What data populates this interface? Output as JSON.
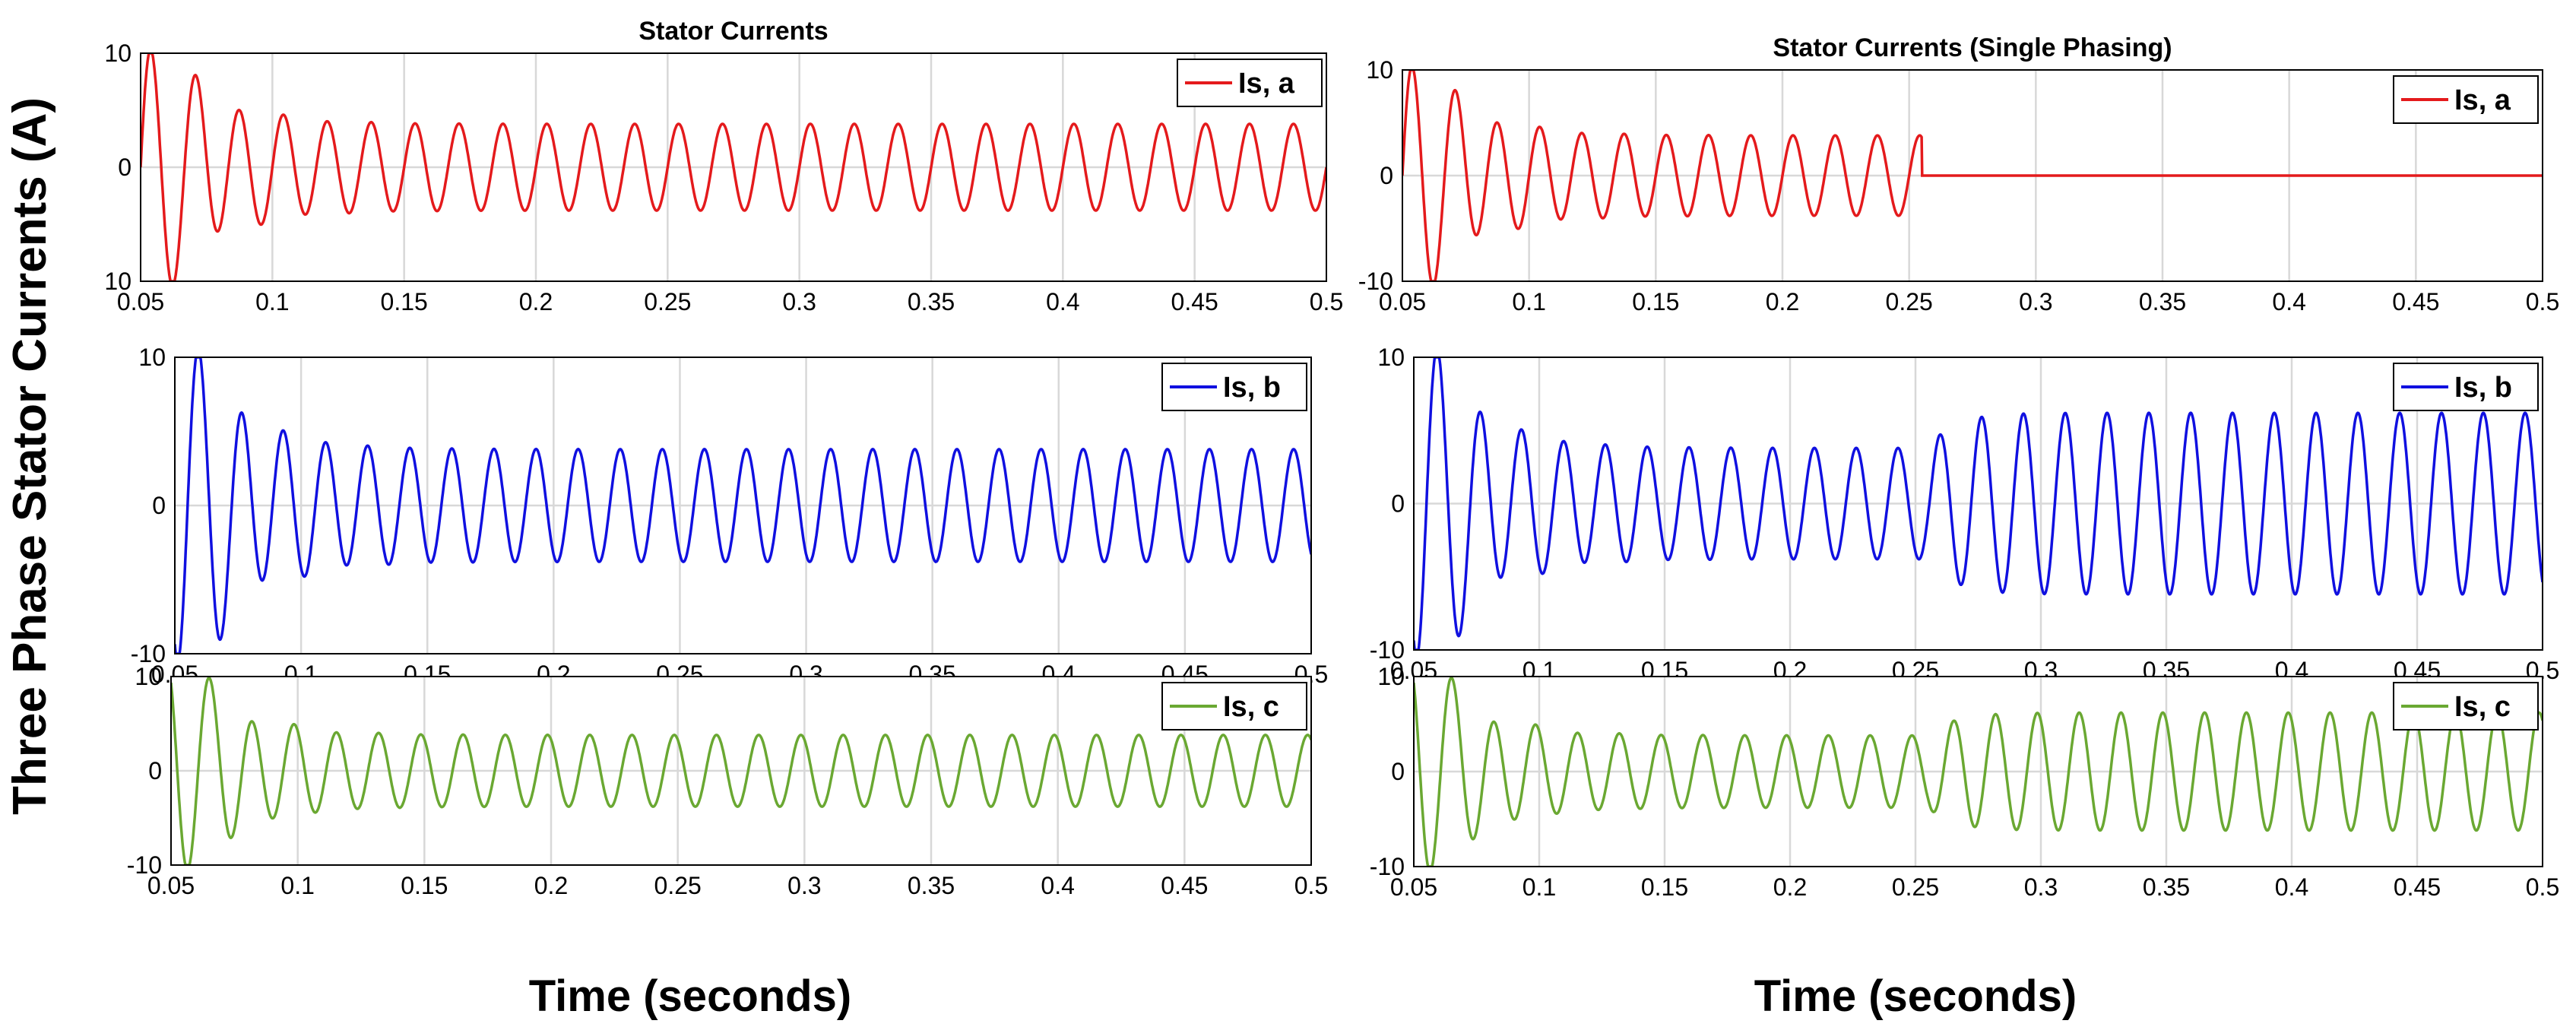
{
  "figure": {
    "ylabel": "Three Phase Stator Currents (A)",
    "xlabel_left": "Time (seconds)",
    "xlabel_right": "Time (seconds)"
  },
  "colors": {
    "phase_a": "#e41a1c",
    "phase_b": "#1010e0",
    "phase_c": "#6aa832",
    "grid": "#d8d8d8",
    "axis": "#000000"
  },
  "chart_data": [
    {
      "type": "line",
      "title": "Stator Currents",
      "legend": "Is, a",
      "color": "#e41a1c",
      "xlim": [
        0.05,
        0.5
      ],
      "ylim": [
        -10,
        10
      ],
      "xticks": [
        "0.05",
        "0.1",
        "0.15",
        "0.2",
        "0.25",
        "0.3",
        "0.35",
        "0.4",
        "0.45",
        "0.5"
      ],
      "yticks": [
        "10",
        "0",
        "10"
      ],
      "steady_amplitude": 3.8,
      "phase_deg": 0,
      "single_phasing": false,
      "ytick_note": "minus sign cropped in original"
    },
    {
      "type": "line",
      "title": "Stator Currents (Single Phasing)",
      "legend": "Is, a",
      "color": "#e41a1c",
      "xlim": [
        0.05,
        0.5
      ],
      "ylim": [
        -10,
        10
      ],
      "xticks": [
        "0.05",
        "0.1",
        "0.15",
        "0.2",
        "0.25",
        "0.3",
        "0.35",
        "0.4",
        "0.45",
        "0.5"
      ],
      "yticks": [
        "10",
        "0",
        "-10"
      ],
      "steady_amplitude": 3.8,
      "phase_deg": 0,
      "single_phasing": true,
      "fault_time": 0.255,
      "post_fault": "zero"
    },
    {
      "type": "line",
      "title": "",
      "legend": "Is, b",
      "color": "#1010e0",
      "xlim": [
        0.05,
        0.5
      ],
      "ylim": [
        -10,
        10
      ],
      "xticks": [
        "0.05",
        "0.1",
        "0.15",
        "0.2",
        "0.25",
        "0.3",
        "0.35",
        "0.4",
        "0.45",
        "0.5"
      ],
      "yticks": [
        "10",
        "0",
        "-10"
      ],
      "steady_amplitude": 3.8,
      "phase_deg": -120,
      "single_phasing": false
    },
    {
      "type": "line",
      "title": "",
      "legend": "Is, b",
      "color": "#1010e0",
      "xlim": [
        0.05,
        0.5
      ],
      "ylim": [
        -10,
        10
      ],
      "xticks": [
        "0.05",
        "0.1",
        "0.15",
        "0.2",
        "0.25",
        "0.3",
        "0.35",
        "0.4",
        "0.45",
        "0.5"
      ],
      "yticks": [
        "10",
        "0",
        "-10"
      ],
      "steady_amplitude": 3.8,
      "phase_deg": -120,
      "single_phasing": true,
      "fault_time": 0.255,
      "post_fault": "amplified",
      "post_fault_amplitude": 6.2
    },
    {
      "type": "line",
      "title": "",
      "legend": "Is, c",
      "color": "#6aa832",
      "xlim": [
        0.05,
        0.5
      ],
      "ylim": [
        -10,
        10
      ],
      "xticks": [
        "0.05",
        "0.1",
        "0.15",
        "0.2",
        "0.25",
        "0.3",
        "0.35",
        "0.4",
        "0.45",
        "0.5"
      ],
      "yticks": [
        "10",
        "0",
        "-10"
      ],
      "steady_amplitude": 3.8,
      "phase_deg": 120,
      "single_phasing": false
    },
    {
      "type": "line",
      "title": "",
      "legend": "Is, c",
      "color": "#6aa832",
      "xlim": [
        0.05,
        0.5
      ],
      "ylim": [
        -10,
        10
      ],
      "xticks": [
        "0.05",
        "0.1",
        "0.15",
        "0.2",
        "0.25",
        "0.3",
        "0.35",
        "0.4",
        "0.45",
        "0.5"
      ],
      "yticks": [
        "10",
        "0",
        "-10"
      ],
      "steady_amplitude": 3.8,
      "phase_deg": 120,
      "single_phasing": true,
      "fault_time": 0.255,
      "post_fault": "amplified",
      "post_fault_amplitude": 6.2
    }
  ]
}
